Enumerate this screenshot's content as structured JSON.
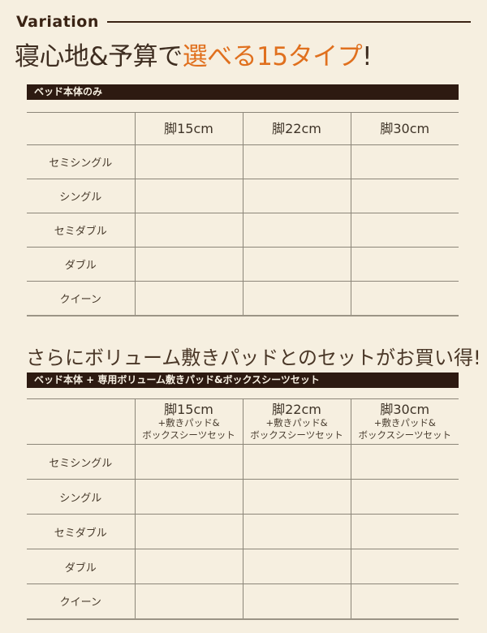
{
  "colors": {
    "background": "#f6efe0",
    "accent_orange": "#e0701e",
    "heading_brown": "#3a2314",
    "bar_background": "#2d1a11",
    "bar_text": "#f7f0e2",
    "grid_line": "#8c8679"
  },
  "header": {
    "label": "Variation"
  },
  "title1": {
    "prefix": "寝心地&予算で",
    "highlight": "選べる15タイプ",
    "suffix": "!"
  },
  "section1": {
    "bar_label": "ベッド本体のみ",
    "table": {
      "col_headers": [
        "脚15cm",
        "脚22cm",
        "脚30cm"
      ],
      "row_headers": [
        "セミシングル",
        "シングル",
        "セミダブル",
        "ダブル",
        "クイーン"
      ]
    }
  },
  "title2": "さらにボリューム敷きパッドとのセットがお買い得!",
  "section2": {
    "bar_label": "ベッド本体 + 専用ボリューム敷きパッド&ボックスシーツセット",
    "table": {
      "col_headers": [
        {
          "main": "脚15cm",
          "sub1": "+敷きパッド&",
          "sub2": "ボックスシーツセット"
        },
        {
          "main": "脚22cm",
          "sub1": "+敷きパッド&",
          "sub2": "ボックスシーツセット"
        },
        {
          "main": "脚30cm",
          "sub1": "+敷きパッド&",
          "sub2": "ボックスシーツセット"
        }
      ],
      "row_headers": [
        "セミシングル",
        "シングル",
        "セミダブル",
        "ダブル",
        "クイーン"
      ]
    }
  }
}
